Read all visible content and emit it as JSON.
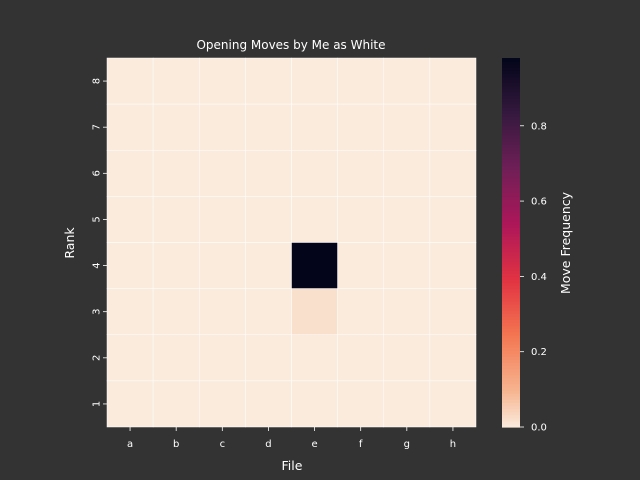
{
  "chart_data": {
    "type": "heatmap",
    "title": "Opening Moves by Me as White",
    "xlabel": "File",
    "ylabel": "Rank",
    "x_categories": [
      "a",
      "b",
      "c",
      "d",
      "e",
      "f",
      "g",
      "h"
    ],
    "y_categories": [
      "8",
      "7",
      "6",
      "5",
      "4",
      "3",
      "2",
      "1"
    ],
    "values": [
      [
        0,
        0,
        0,
        0,
        0,
        0,
        0,
        0
      ],
      [
        0,
        0,
        0,
        0,
        0,
        0,
        0,
        0
      ],
      [
        0,
        0,
        0,
        0,
        0,
        0,
        0,
        0
      ],
      [
        0,
        0,
        0,
        0,
        0,
        0,
        0,
        0
      ],
      [
        0,
        0,
        0,
        0,
        0.98,
        0,
        0,
        0
      ],
      [
        0,
        0,
        0,
        0,
        0.02,
        0,
        0,
        0
      ],
      [
        0,
        0,
        0,
        0,
        0,
        0,
        0,
        0
      ],
      [
        0,
        0,
        0,
        0,
        0,
        0,
        0,
        0
      ]
    ],
    "colorbar": {
      "label": "Move Frequency",
      "vmin": 0,
      "vmax": 0.98,
      "ticks": [
        "0.0",
        "0.2",
        "0.4",
        "0.6",
        "0.8"
      ],
      "colormap": "rocket_r"
    },
    "grid": true,
    "colors": {
      "background": "#333333",
      "cell_border": "#ffffff",
      "text": "#ffffff"
    }
  }
}
